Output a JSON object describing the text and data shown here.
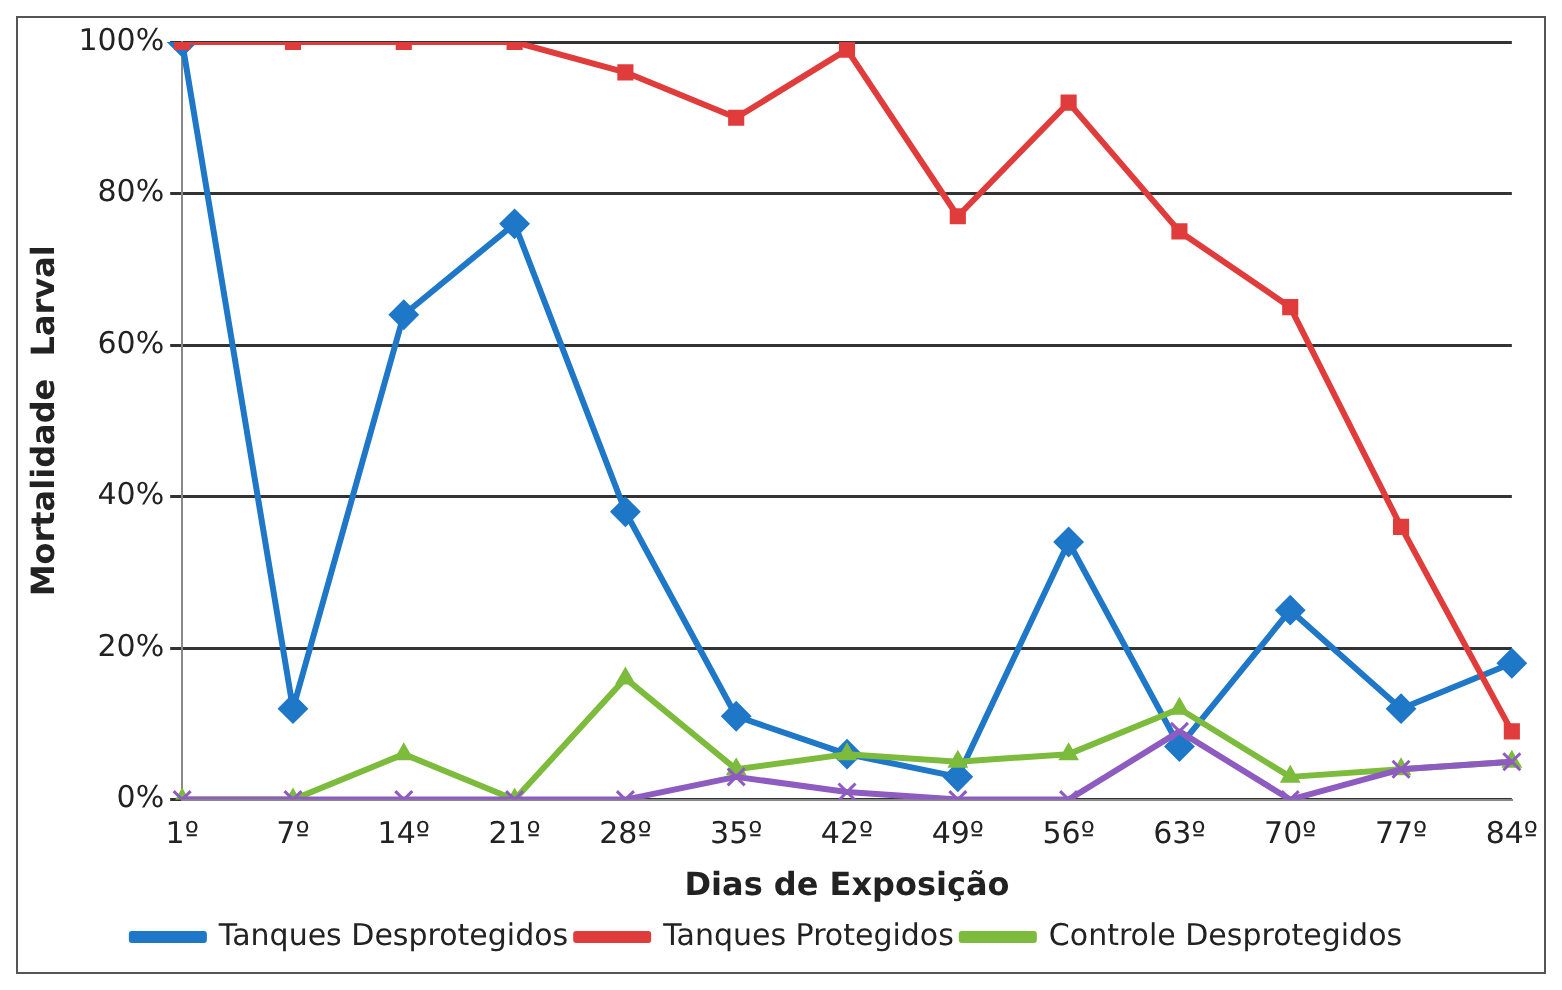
{
  "chart_data": {
    "type": "line",
    "xlabel": "Dias de Exposição",
    "ylabel": "Mortalidade  Larval",
    "categories": [
      "1º",
      "7º",
      "14º",
      "21º",
      "28º",
      "35º",
      "42º",
      "49º",
      "56º",
      "63º",
      "70º",
      "77º",
      "84º"
    ],
    "series": [
      {
        "name": "Tanques Desprotegidos",
        "color": "#1f77c8",
        "marker": "diamond",
        "values": [
          100,
          12,
          64,
          76,
          38,
          11,
          6,
          3,
          34,
          7,
          25,
          12,
          18
        ]
      },
      {
        "name": "Tanques Protegidos",
        "color": "#e03c3c",
        "marker": "square",
        "values": [
          100,
          100,
          100,
          100,
          96,
          90,
          99,
          77,
          92,
          75,
          65,
          36,
          9
        ]
      },
      {
        "name": "Controle Desprotegidos",
        "color": "#7cbb3c",
        "marker": "triangle",
        "values": [
          0,
          0,
          6,
          0,
          16,
          4,
          6,
          5,
          6,
          12,
          3,
          4,
          5
        ]
      },
      {
        "color": "#8e5cc0",
        "marker": "cross",
        "values": [
          0,
          0,
          0,
          0,
          0,
          3,
          1,
          0,
          0,
          9,
          0,
          4,
          5
        ]
      }
    ],
    "ylim": [
      0,
      100
    ],
    "yticks": [
      {
        "value": 0,
        "label": "0%"
      },
      {
        "value": 20,
        "label": "20%"
      },
      {
        "value": 40,
        "label": "40%"
      },
      {
        "value": 60,
        "label": "60%"
      },
      {
        "value": 80,
        "label": "80%"
      },
      {
        "value": 100,
        "label": "100%"
      }
    ],
    "grid": "y",
    "legend": "bottom",
    "line_style": "solid"
  }
}
